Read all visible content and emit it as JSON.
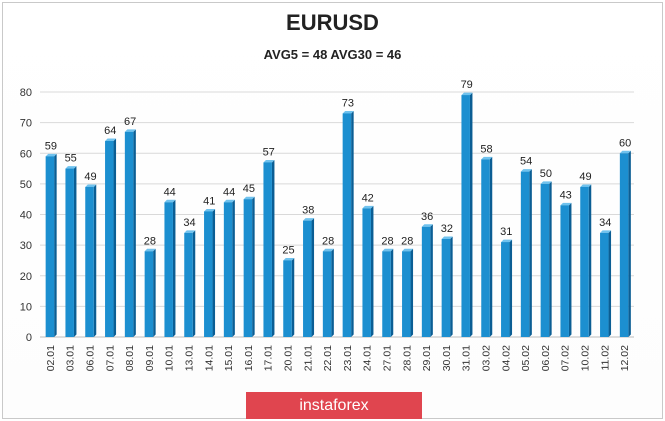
{
  "chart_data": {
    "type": "bar",
    "title": "EURUSD",
    "subtitle": "AVG5 = 48 AVG30 = 46",
    "categories": [
      "02.01",
      "03.01",
      "06.01",
      "07.01",
      "08.01",
      "09.01",
      "10.01",
      "13.01",
      "14.01",
      "15.01",
      "16.01",
      "17.01",
      "20.01",
      "21.01",
      "22.01",
      "23.01",
      "24.01",
      "27.01",
      "28.01",
      "29.01",
      "30.01",
      "31.01",
      "03.02",
      "04.02",
      "05.02",
      "06.02",
      "07.02",
      "10.02",
      "11.02",
      "12.02"
    ],
    "values": [
      59,
      55,
      49,
      64,
      67,
      28,
      44,
      34,
      41,
      44,
      45,
      57,
      25,
      38,
      28,
      73,
      42,
      28,
      28,
      36,
      32,
      79,
      58,
      31,
      54,
      50,
      43,
      49,
      34,
      60
    ],
    "ylim": [
      0,
      80
    ],
    "yticks": [
      0,
      10,
      20,
      30,
      40,
      50,
      60,
      70,
      80
    ],
    "grid": true,
    "legend": "none",
    "bar_color": "#1c8fd0",
    "bar_edge_color": "#0b5e94"
  },
  "brand": {
    "text": "instaforex",
    "background": "#e0454f"
  }
}
